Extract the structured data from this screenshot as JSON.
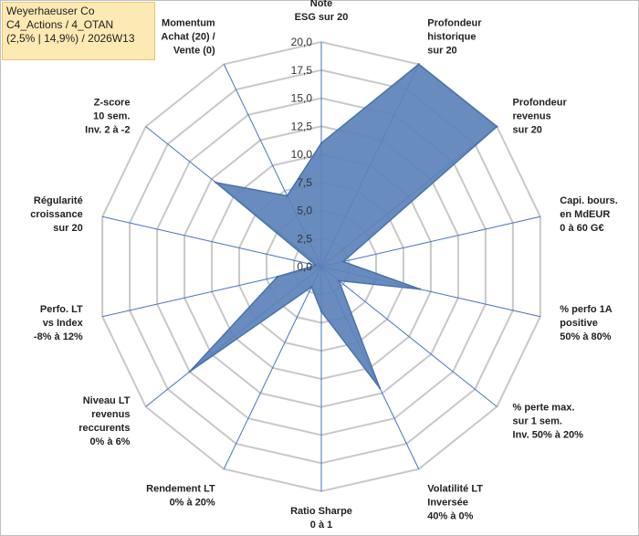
{
  "info": {
    "line1": "Weyerhaeuser Co",
    "line2": "C4_Actions / 4_OTAN",
    "line3": "(2,5% | 14,9%) / 2026W13"
  },
  "chart_data": {
    "type": "radar",
    "title": "",
    "rlim": [
      0,
      20
    ],
    "r_ticks": [
      "0,0",
      "2,5",
      "5,0",
      "7,5",
      "10,0",
      "12,5",
      "15,0",
      "17,5",
      "20,0"
    ],
    "grid": true,
    "legend": "none",
    "colors": {
      "fill": "#5b82b9",
      "stroke": "#4a72ab",
      "grid": "#c8c8c8",
      "spoke": "#4472c4"
    },
    "categories": [
      [
        "Note",
        "ESG sur 20"
      ],
      [
        "Profondeur",
        "historique",
        "sur 20"
      ],
      [
        "Profondeur",
        "revenus",
        "sur 20"
      ],
      [
        "Capi. bours.",
        "en MdEUR",
        "0 à 60 G€"
      ],
      [
        "% perfo 1A",
        "positive",
        "50% à 80%"
      ],
      [
        "% perte max.",
        "sur 1 sem.",
        "Inv. 50% à 20%"
      ],
      [
        "Volatilité LT",
        "Inversée",
        "40% à 0%"
      ],
      [
        "Ratio Sharpe",
        "0 à 1"
      ],
      [
        "Rendement LT",
        "0% à 20%"
      ],
      [
        "Niveau LT",
        "revenus",
        "reccurents",
        "0% à 6%"
      ],
      [
        "Perfo. LT",
        "vs Index",
        "-8% à 12%"
      ],
      [
        "Régularité",
        "croissance",
        "sur 20"
      ],
      [
        "Z-score",
        "10 sem.",
        "Inv. 2 à -2"
      ],
      [
        "Momentum",
        "Achat (20) /",
        "Vente (0)"
      ]
    ],
    "series": [
      {
        "values": [
          11,
          20,
          20,
          2,
          9,
          2,
          12,
          4,
          2,
          15,
          4,
          0.5,
          12,
          7
        ]
      }
    ]
  }
}
